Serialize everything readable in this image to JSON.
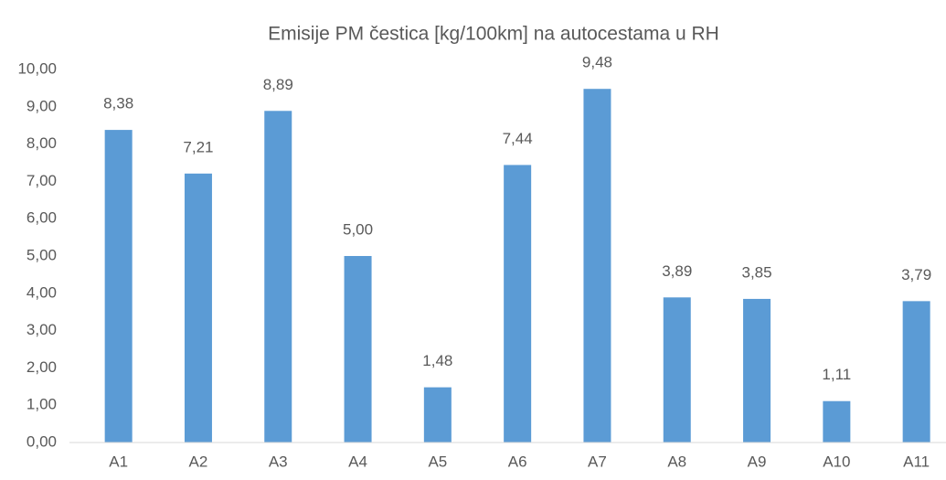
{
  "chart_data": {
    "type": "bar",
    "title": "Emisije PM čestica [kg/100km] na autocestama u RH",
    "categories": [
      "A1",
      "A2",
      "A3",
      "A4",
      "A5",
      "A6",
      "A7",
      "A8",
      "A9",
      "A10",
      "A11"
    ],
    "values": [
      8.38,
      7.21,
      8.89,
      5.0,
      1.48,
      7.44,
      9.48,
      3.89,
      3.85,
      1.11,
      3.79
    ],
    "value_labels": [
      "8,38",
      "7,21",
      "8,89",
      "5,00",
      "1,48",
      "7,44",
      "9,48",
      "3,89",
      "3,85",
      "1,11",
      "3,79"
    ],
    "color": "#5b9bd5",
    "ylim": [
      0,
      10
    ],
    "yticks": [
      {
        "value": 0,
        "label": "0,00"
      },
      {
        "value": 1,
        "label": "1,00"
      },
      {
        "value": 2,
        "label": "2,00"
      },
      {
        "value": 3,
        "label": "3,00"
      },
      {
        "value": 4,
        "label": "4,00"
      },
      {
        "value": 5,
        "label": "5,00"
      },
      {
        "value": 6,
        "label": "6,00"
      },
      {
        "value": 7,
        "label": "7,00"
      },
      {
        "value": 8,
        "label": "8,00"
      },
      {
        "value": 9,
        "label": "9,00"
      },
      {
        "value": 10,
        "label": "10,00"
      }
    ],
    "grid": false
  }
}
